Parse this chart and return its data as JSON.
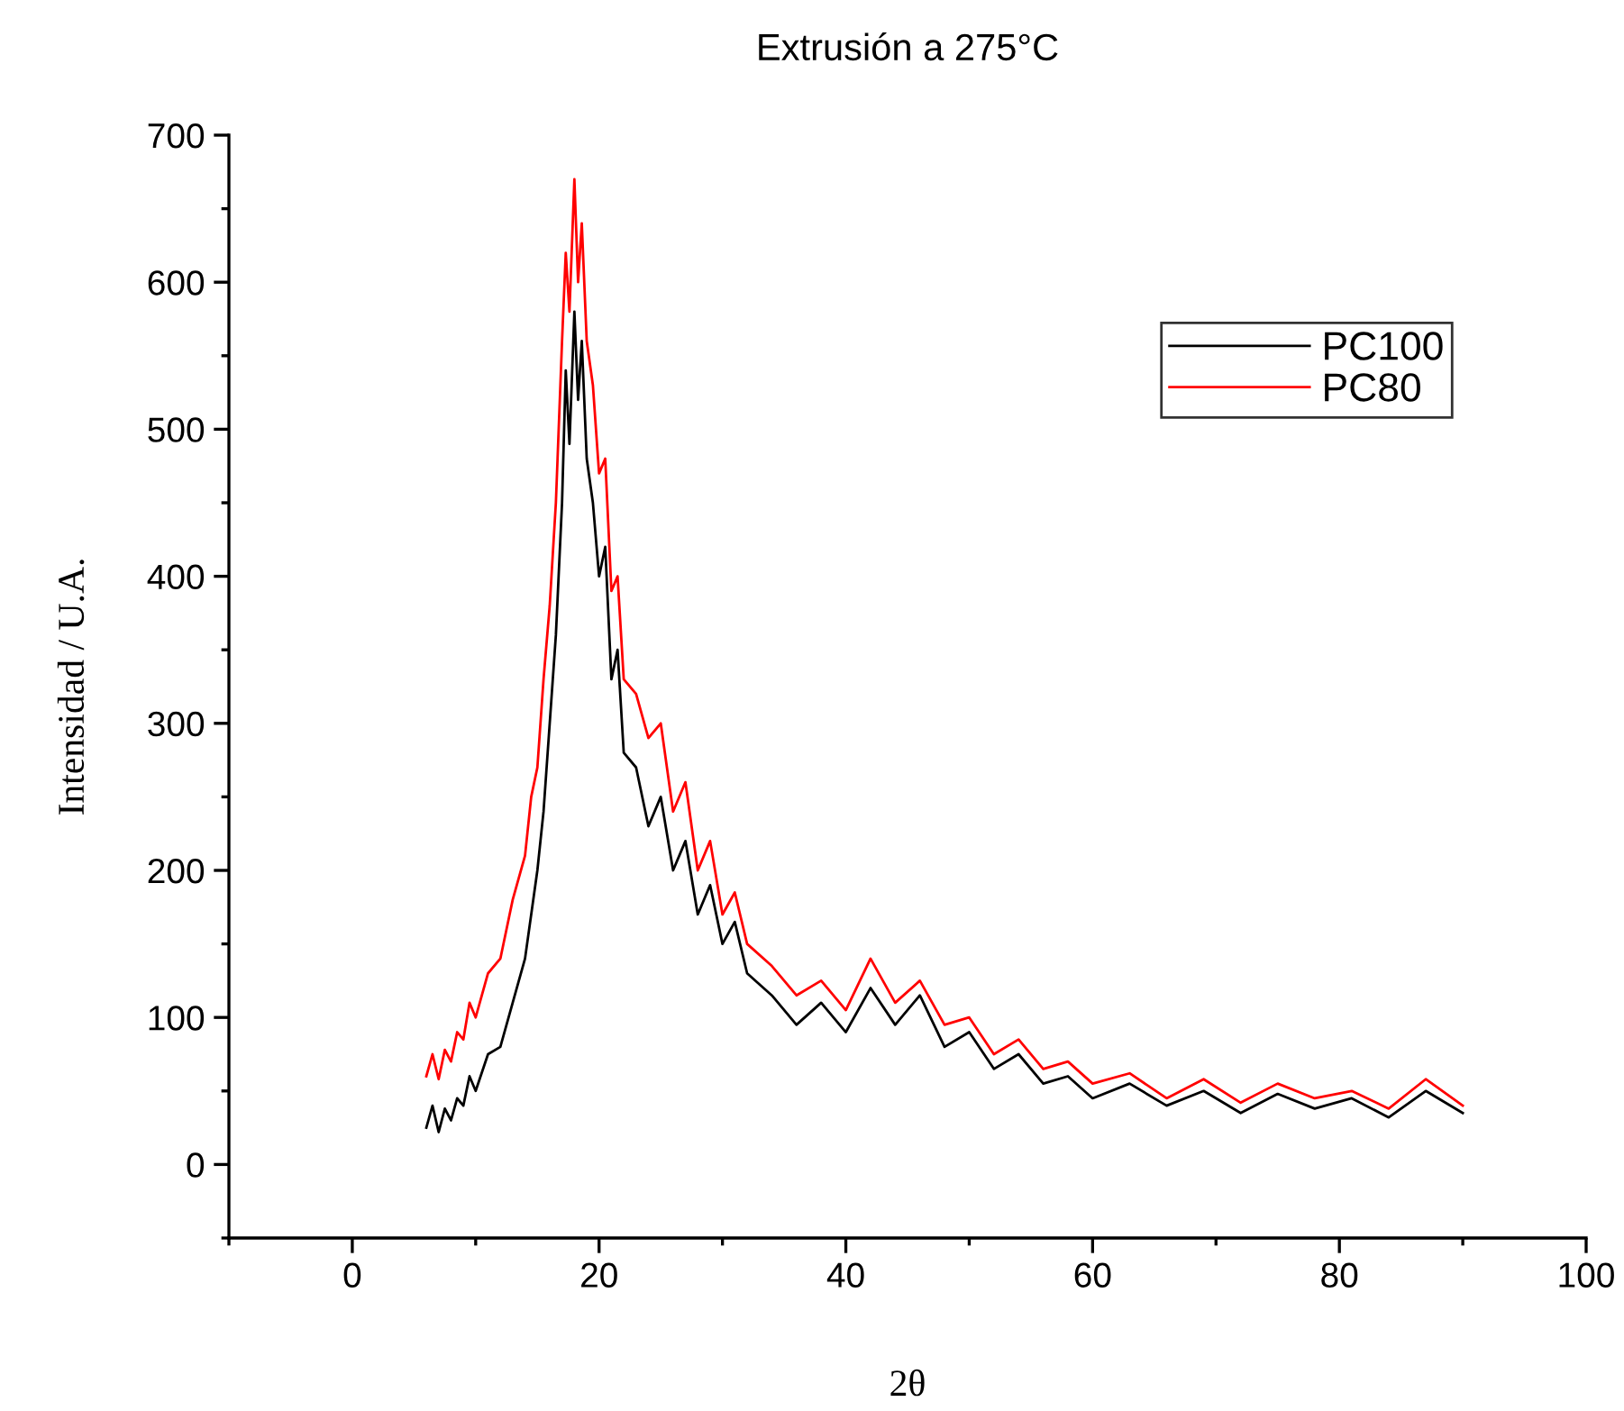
{
  "chart_data": {
    "type": "line",
    "title": "Extrusión a 275°C",
    "xlabel": "2θ",
    "ylabel": "Intensidad / U.A.",
    "x": [
      6,
      6.5,
      7,
      7.5,
      8,
      8.5,
      9,
      9.5,
      10,
      11,
      12,
      13,
      14,
      14.5,
      15,
      15.5,
      16,
      16.5,
      17,
      17.3,
      17.6,
      18,
      18.3,
      18.6,
      19,
      19.5,
      20,
      20.5,
      21,
      21.5,
      22,
      23,
      24,
      25,
      26,
      27,
      28,
      29,
      30,
      31,
      32,
      34,
      36,
      38,
      40,
      42,
      44,
      46,
      48,
      50,
      52,
      54,
      56,
      58,
      60,
      63,
      66,
      69,
      72,
      75,
      78,
      81,
      84,
      87,
      90
    ],
    "series": [
      {
        "name": "PC100",
        "color": "#000000",
        "values": [
          25,
          40,
          22,
          38,
          30,
          45,
          40,
          60,
          50,
          75,
          80,
          110,
          140,
          170,
          200,
          240,
          300,
          360,
          450,
          540,
          490,
          580,
          520,
          560,
          480,
          450,
          400,
          420,
          330,
          350,
          280,
          270,
          230,
          250,
          200,
          220,
          170,
          190,
          150,
          165,
          130,
          115,
          95,
          110,
          90,
          120,
          95,
          115,
          80,
          90,
          65,
          75,
          55,
          60,
          45,
          55,
          40,
          50,
          35,
          48,
          38,
          45,
          32,
          50,
          35
        ]
      },
      {
        "name": "PC80",
        "color": "#ff0000",
        "values": [
          60,
          75,
          58,
          78,
          70,
          90,
          85,
          110,
          100,
          130,
          140,
          180,
          210,
          250,
          270,
          330,
          380,
          450,
          560,
          620,
          580,
          670,
          600,
          640,
          560,
          530,
          470,
          480,
          390,
          400,
          330,
          320,
          290,
          300,
          240,
          260,
          200,
          220,
          170,
          185,
          150,
          135,
          115,
          125,
          105,
          140,
          110,
          125,
          95,
          100,
          75,
          85,
          65,
          70,
          55,
          62,
          45,
          58,
          42,
          55,
          45,
          50,
          38,
          58,
          40
        ]
      }
    ],
    "xlim": [
      -10,
      100
    ],
    "xticks": [
      0,
      20,
      40,
      60,
      80,
      100
    ],
    "ylim": [
      -50,
      700
    ],
    "yticks": [
      0,
      100,
      200,
      300,
      400,
      500,
      600,
      700
    ],
    "grid": false,
    "legend": "top right",
    "marker": "none",
    "line_style": "solid"
  }
}
